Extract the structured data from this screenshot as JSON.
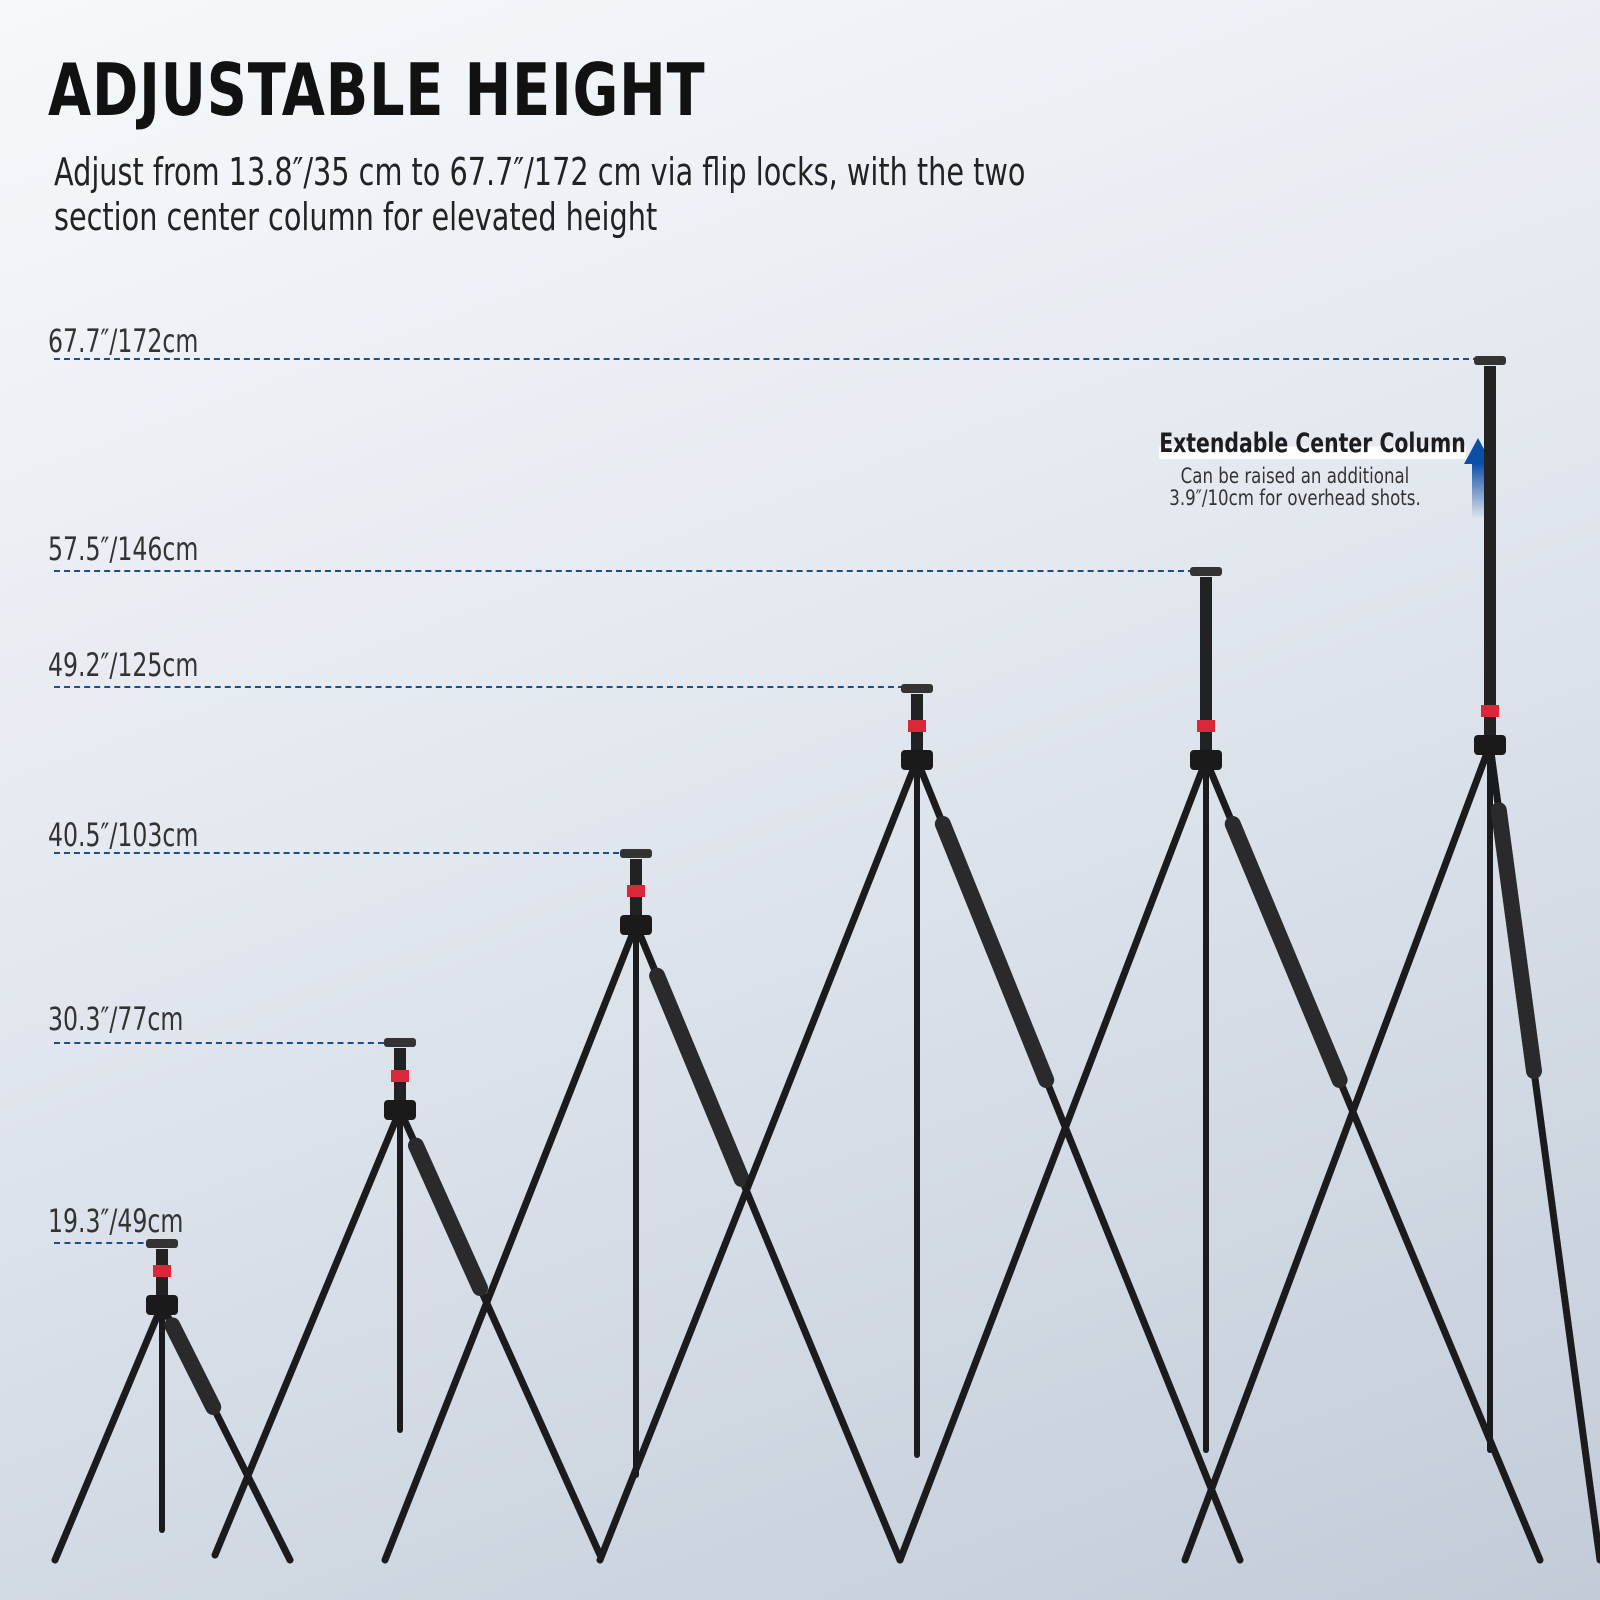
{
  "header": {
    "title": "ADJUSTABLE HEIGHT",
    "subtitle": "Adjust from 13.8″/35 cm to 67.7″/172 cm via flip locks, with the two section center column for elevated height"
  },
  "heights": [
    {
      "label": "67.7″/172cm"
    },
    {
      "label": "57.5″/146cm"
    },
    {
      "label": "49.2″/125cm"
    },
    {
      "label": "40.5″/103cm"
    },
    {
      "label": "30.3″/77cm"
    },
    {
      "label": "19.3″/49cm"
    }
  ],
  "callout": {
    "title": "Extendable Center Column",
    "text": "Can be raised an additional 3.9″/10cm for overhead shots.",
    "arrow_icon": "arrow-up-icon"
  },
  "colors": {
    "accent": "#d8283a",
    "line": "#1d4f86",
    "arrow": "#0d4fa8"
  }
}
